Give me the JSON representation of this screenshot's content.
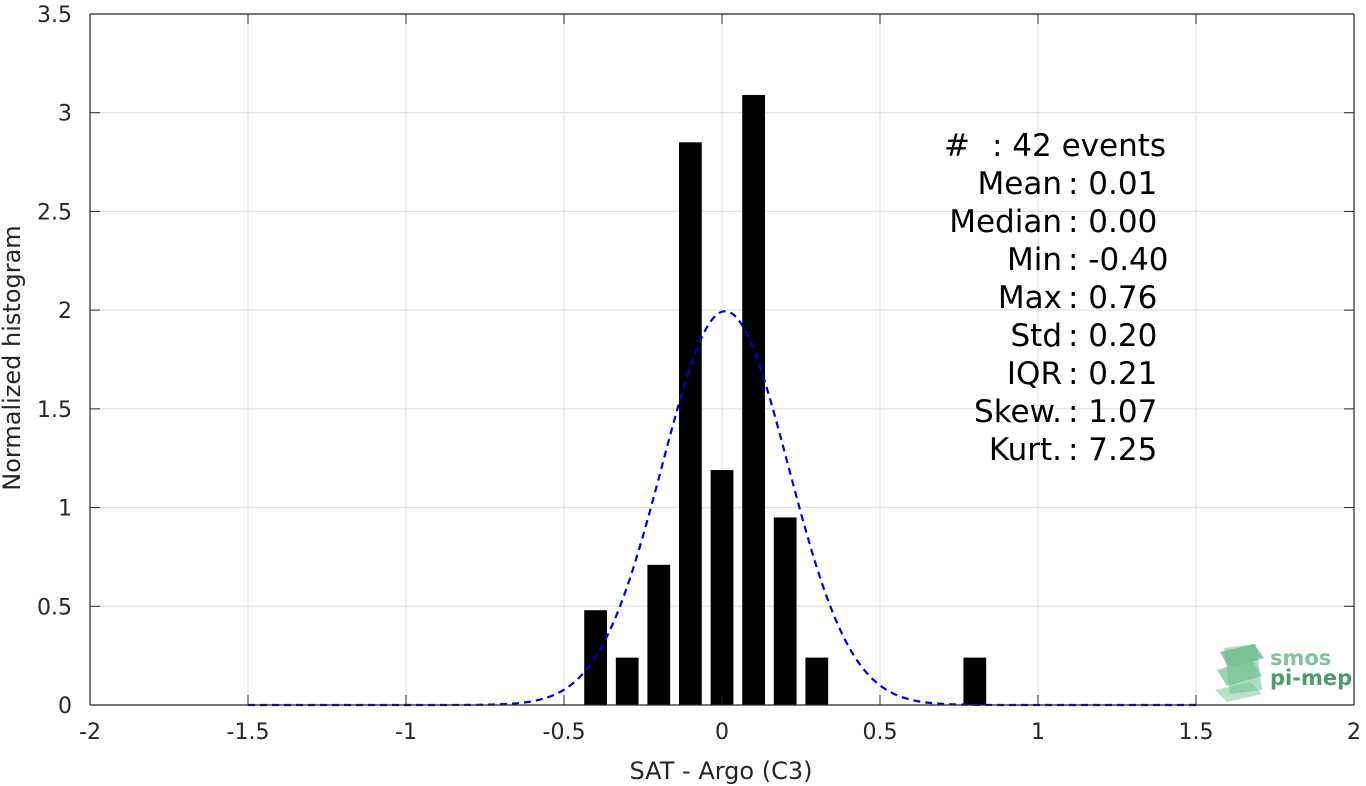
{
  "chart_data": {
    "type": "bar",
    "xlabel": "SAT - Argo (C3)",
    "ylabel": "Normalized histogram",
    "xlim": [
      -2,
      2
    ],
    "ylim": [
      0,
      3.5
    ],
    "grid": true,
    "x_ticks": [
      -2,
      -1.5,
      -1,
      -0.5,
      0,
      0.5,
      1,
      1.5,
      2
    ],
    "x_tick_labels": [
      "-2",
      "-1.5",
      "-1",
      "-0.5",
      "0",
      "0.5",
      "1",
      "1.5",
      "2"
    ],
    "y_ticks": [
      0,
      0.5,
      1,
      1.5,
      2,
      2.5,
      3,
      3.5
    ],
    "y_tick_labels": [
      "0",
      "0.5",
      "1",
      "1.5",
      "2",
      "2.5",
      "3",
      "3.5"
    ],
    "bin_width": 0.1,
    "bars": {
      "x": [
        -0.4,
        -0.3,
        -0.2,
        -0.1,
        0.0,
        0.1,
        0.2,
        0.3,
        0.8
      ],
      "values": [
        0.48,
        0.24,
        0.71,
        2.85,
        1.19,
        3.09,
        0.95,
        0.24,
        0.24
      ],
      "color": "#000000"
    },
    "fit_curve": {
      "style": "dashed",
      "color": "#0000e0",
      "x_range": [
        -1.5,
        1.5
      ],
      "mean": 0.01,
      "std": 0.2
    },
    "stats": {
      "count": {
        "label": "#",
        "value": ": 42 events"
      },
      "lines": [
        {
          "label": "Mean",
          "value": ": 0.01"
        },
        {
          "label": "Median",
          "value": ": 0.00"
        },
        {
          "label": "Min",
          "value": ": -0.40"
        },
        {
          "label": "Max",
          "value": ": 0.76"
        },
        {
          "label": "Std",
          "value": ": 0.20"
        },
        {
          "label": "IQR",
          "value": ": 0.21"
        },
        {
          "label": "Skew.",
          "value": ": 1.07"
        },
        {
          "label": "Kurt.",
          "value": ": 7.25"
        }
      ]
    }
  },
  "logo": {
    "line1": "smos",
    "line2": "pi-mep",
    "color1": "#7fc49a",
    "color2": "#4a9a6a"
  },
  "colors": {
    "axis": "#262626",
    "grid": "#dcdcdc"
  }
}
